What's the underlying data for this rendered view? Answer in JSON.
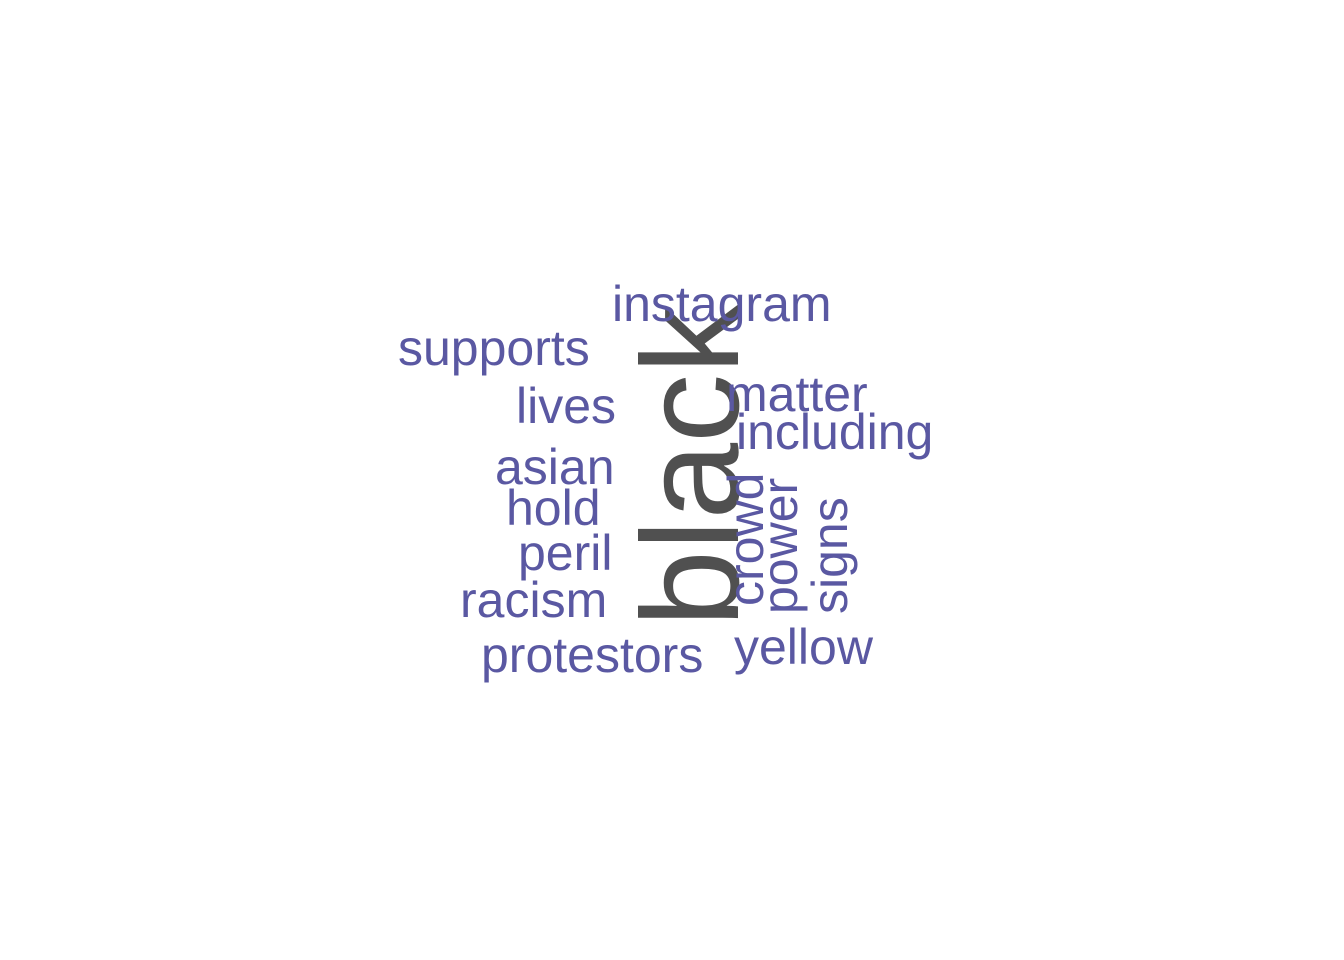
{
  "colors": {
    "background": "#ffffff",
    "primary_word": "#505050",
    "secondary_word": "#5a58a2"
  },
  "words": [
    {
      "text": "black",
      "weight": 1.0,
      "color": "primary",
      "orientation": "vertical"
    },
    {
      "text": "instagram",
      "weight": 0.5,
      "color": "secondary",
      "orientation": "horizontal"
    },
    {
      "text": "supports",
      "weight": 0.5,
      "color": "secondary",
      "orientation": "horizontal"
    },
    {
      "text": "lives",
      "weight": 0.5,
      "color": "secondary",
      "orientation": "horizontal"
    },
    {
      "text": "matter",
      "weight": 0.5,
      "color": "secondary",
      "orientation": "horizontal"
    },
    {
      "text": "including",
      "weight": 0.5,
      "color": "secondary",
      "orientation": "horizontal"
    },
    {
      "text": "asian",
      "weight": 0.5,
      "color": "secondary",
      "orientation": "horizontal"
    },
    {
      "text": "hold",
      "weight": 0.5,
      "color": "secondary",
      "orientation": "horizontal"
    },
    {
      "text": "crowd",
      "weight": 0.5,
      "color": "secondary",
      "orientation": "vertical"
    },
    {
      "text": "power",
      "weight": 0.5,
      "color": "secondary",
      "orientation": "vertical"
    },
    {
      "text": "signs",
      "weight": 0.5,
      "color": "secondary",
      "orientation": "vertical"
    },
    {
      "text": "peril",
      "weight": 0.5,
      "color": "secondary",
      "orientation": "horizontal"
    },
    {
      "text": "racism",
      "weight": 0.5,
      "color": "secondary",
      "orientation": "horizontal"
    },
    {
      "text": "protestors",
      "weight": 0.5,
      "color": "secondary",
      "orientation": "horizontal"
    },
    {
      "text": "yellow",
      "weight": 0.5,
      "color": "secondary",
      "orientation": "horizontal"
    }
  ]
}
